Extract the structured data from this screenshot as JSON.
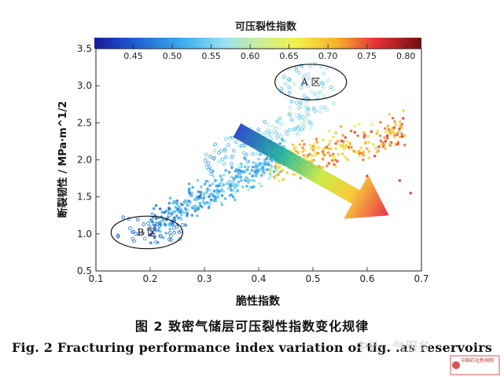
{
  "chart_data": {
    "type": "scatter",
    "title": "",
    "colorbar": {
      "label": "可压裂性指数",
      "range": [
        0.4,
        0.82
      ],
      "ticks": [
        0.45,
        0.5,
        0.55,
        0.6,
        0.65,
        0.7,
        0.75,
        0.8
      ],
      "colormap": "jet"
    },
    "xlabel": "脆性指数",
    "ylabel": "断裂韧性 / MPa·m^1/2",
    "xlim": [
      0.1,
      0.7
    ],
    "ylim": [
      0.5,
      3.5
    ],
    "xticks": [
      0.1,
      0.2,
      0.3,
      0.4,
      0.5,
      0.6,
      0.7
    ],
    "yticks": [
      0.5,
      1.0,
      1.5,
      2.0,
      2.5,
      3.0,
      3.5
    ],
    "grid": false,
    "regions": [
      {
        "label": "A 区",
        "center": [
          0.496,
          3.05
        ],
        "rx": 0.066,
        "ry": 0.24
      },
      {
        "label": "B 区",
        "center": [
          0.194,
          1.02
        ],
        "rx": 0.066,
        "ry": 0.22
      }
    ],
    "arrow": {
      "from": [
        0.36,
        2.4
      ],
      "to": [
        0.64,
        1.25
      ],
      "meaning": "fracturability index increases"
    },
    "clusters": [
      {
        "name": "B-zone",
        "x_range": [
          0.14,
          0.26
        ],
        "y_range": [
          0.85,
          1.25
        ],
        "index_range": [
          0.43,
          0.5
        ],
        "n": 40
      },
      {
        "name": "main-band",
        "x_range": [
          0.2,
          0.45
        ],
        "y_trend": [
          [
            0.2,
            1.1
          ],
          [
            0.45,
            2.1
          ]
        ],
        "index_range": [
          0.45,
          0.6
        ],
        "n": 420
      },
      {
        "name": "upper-band",
        "x_range": [
          0.3,
          0.5
        ],
        "y_trend": [
          [
            0.3,
            1.9
          ],
          [
            0.5,
            2.6
          ]
        ],
        "index_range": [
          0.48,
          0.6
        ],
        "n": 120
      },
      {
        "name": "A-zone",
        "x_range": [
          0.44,
          0.54
        ],
        "y_range": [
          2.65,
          3.3
        ],
        "index_range": [
          0.5,
          0.6
        ],
        "n": 60
      },
      {
        "name": "right-band",
        "x_range": [
          0.42,
          0.67
        ],
        "y_trend": [
          [
            0.42,
            1.9
          ],
          [
            0.67,
            2.4
          ]
        ],
        "index_range": [
          0.62,
          0.78
        ],
        "n": 260
      },
      {
        "name": "high-outliers",
        "points": [
          [
            0.66,
            1.72
          ],
          [
            0.68,
            1.55
          ],
          [
            0.6,
            1.78
          ]
        ],
        "index_range": [
          0.76,
          0.8
        ]
      }
    ]
  },
  "caption": {
    "cn": "图 2   致密气储层可压裂性指数变化规律",
    "en": "Fig. 2    Fracturing performance index variation of tig. .as reservoirs"
  },
  "watermark": {
    "text": "中外...气服务",
    "logo_text": "中国石化新闻网"
  }
}
